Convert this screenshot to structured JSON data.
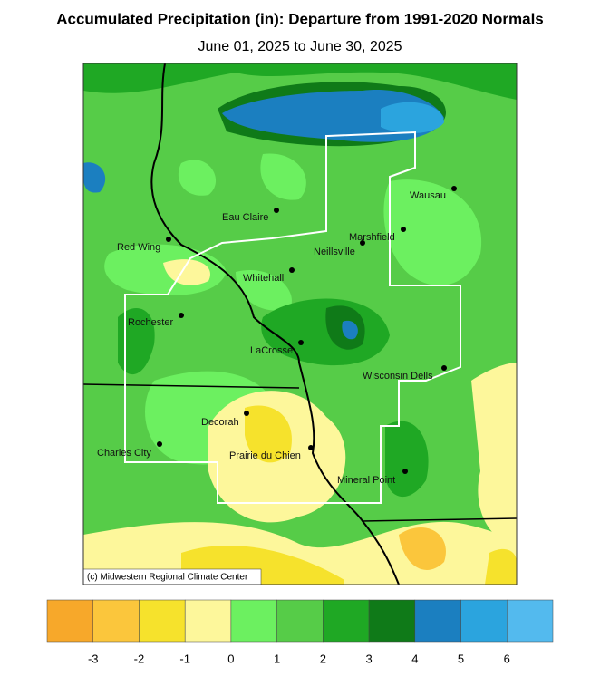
{
  "title": "Accumulated Precipitation (in): Departure from 1991-2020 Normals",
  "subtitle": "June 01, 2025 to June 30, 2025",
  "credit": "(c) Midwestern Regional Climate Center",
  "cities": [
    "Eau Claire",
    "Wausau",
    "Marshfield",
    "Neillsville",
    "Red Wing",
    "Whitehall",
    "Rochester",
    "LaCrosse",
    "Wisconsin Dells",
    "Decorah",
    "Prairie du Chien",
    "Charles City",
    "Mineral Point"
  ],
  "legend": {
    "ticks": [
      -3,
      -2,
      -1,
      0,
      1,
      2,
      3,
      4,
      5,
      6
    ],
    "colors": [
      "#f7a82a",
      "#fbc63c",
      "#f6e22c",
      "#fdf79b",
      "#6cf060",
      "#56cc48",
      "#1fa824",
      "#0f7a18",
      "#1b7fc0",
      "#2ba4de",
      "#53baee"
    ]
  }
}
